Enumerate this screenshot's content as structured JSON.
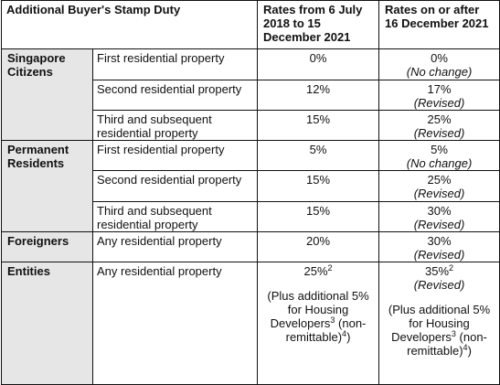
{
  "headers": {
    "duty": "Additional Buyer's Stamp Duty",
    "rate_old": "Rates from 6 July 2018 to 15 December 2021",
    "rate_new": "Rates on or after 16 December 2021"
  },
  "rows": [
    {
      "category": "Singapore Citizens",
      "property": "First residential property",
      "rate_old": "0%",
      "rate_new": "0%",
      "note": "(No change)"
    },
    {
      "property": "Second residential property",
      "rate_old": "12%",
      "rate_new": "17%",
      "note": "(Revised)"
    },
    {
      "property": "Third and subsequent residential property",
      "rate_old": "15%",
      "rate_new": "25%",
      "note": "(Revised)"
    },
    {
      "category": "Permanent Residents",
      "property": "First residential property",
      "rate_old": "5%",
      "rate_new": "5%",
      "note": "(No change)"
    },
    {
      "property": "Second residential property",
      "rate_old": "15%",
      "rate_new": "25%",
      "note": "(Revised)"
    },
    {
      "property": "Third and subsequent residential property",
      "rate_old": "15%",
      "rate_new": "30%",
      "note": "(Revised)"
    },
    {
      "category": "Foreigners",
      "property": "Any residential property",
      "rate_old": "20%",
      "rate_new": "30%",
      "note": "(Revised)"
    },
    {
      "category": "Entities",
      "property": "Any residential property",
      "rate_old": "25%",
      "rate_old_sup": "2",
      "rate_new": "35%",
      "rate_new_sup": "2",
      "note": "(Revised)",
      "extra_old": {
        "text": "(Plus additional 5% for Housing Developers",
        "sup1": "3",
        "mid": " (non-remittable)",
        "sup2": "4",
        "end": ")"
      },
      "extra_new": {
        "text": "(Plus additional 5% for Housing Developers",
        "sup1": "3",
        "mid": " (non-remittable)",
        "sup2": "4",
        "end": ")"
      }
    }
  ]
}
